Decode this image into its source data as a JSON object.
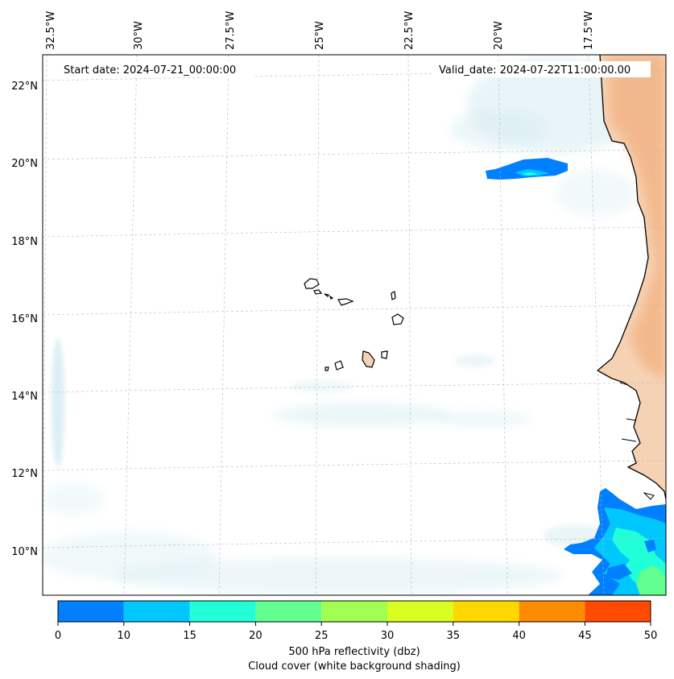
{
  "header": {
    "start_date": "Start date: 2024-07-21_00:00:00",
    "valid_date": "Valid_date: 2024-07-22T11:00:00.00"
  },
  "lon_labels": [
    "32.5°W",
    "30°W",
    "27.5°W",
    "25°W",
    "22.5°W",
    "20°W",
    "17.5°W"
  ],
  "lat_labels": [
    "22°N",
    "20°N",
    "18°N",
    "16°N",
    "14°N",
    "12°N",
    "10°N"
  ],
  "colorbar": {
    "ticks": [
      "0",
      "10",
      "15",
      "20",
      "25",
      "30",
      "35",
      "40",
      "45",
      "50"
    ],
    "colors": [
      "#0080ff",
      "#00c8ff",
      "#20ffd8",
      "#60ff90",
      "#a0ff50",
      "#d8ff20",
      "#ffd800",
      "#ff8c00",
      "#ff4a00"
    ],
    "label_line1": "500 hPa reflectivity (dbz)",
    "label_line2": "Cloud cover (white background shading)"
  },
  "colors": {
    "land": "#f6d2b4",
    "land_dark": "#f0a068",
    "cloud": "#d6ecf2",
    "refl_low": "#0080ff",
    "refl_mid": "#00c8ff",
    "refl_high": "#20ffd8",
    "refl_max": "#60ff90"
  }
}
